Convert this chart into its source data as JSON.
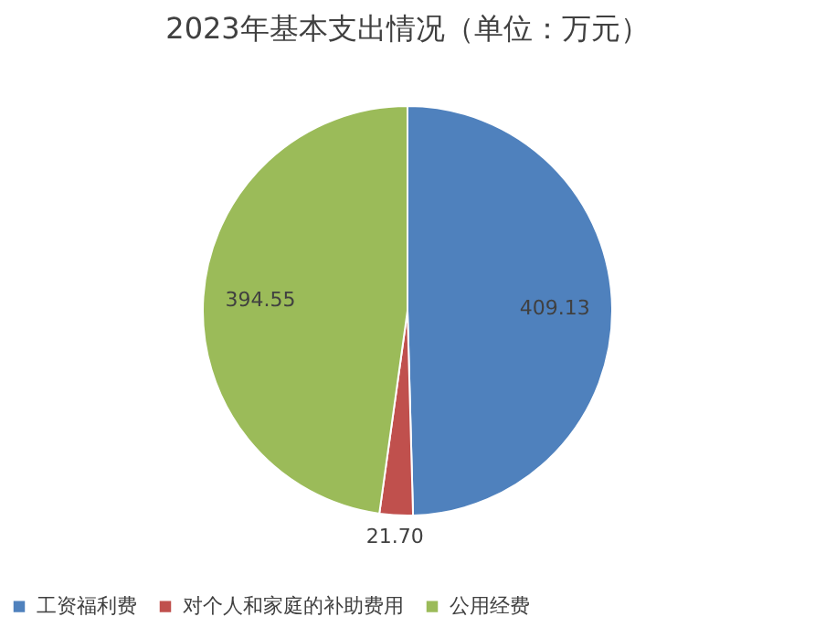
{
  "chart_data": {
    "type": "pie",
    "title": "2023年基本支出情况（单位：万元）",
    "categories": [
      "工资福利费",
      "对个人和家庭的补助费用",
      "公用经费"
    ],
    "values": [
      409.13,
      21.7,
      394.55
    ],
    "colors": [
      "#4f81bd",
      "#c0504d",
      "#9bbb59"
    ],
    "value_labels": [
      "409.13",
      "21.70",
      "394.55"
    ],
    "legend": "bottom"
  }
}
